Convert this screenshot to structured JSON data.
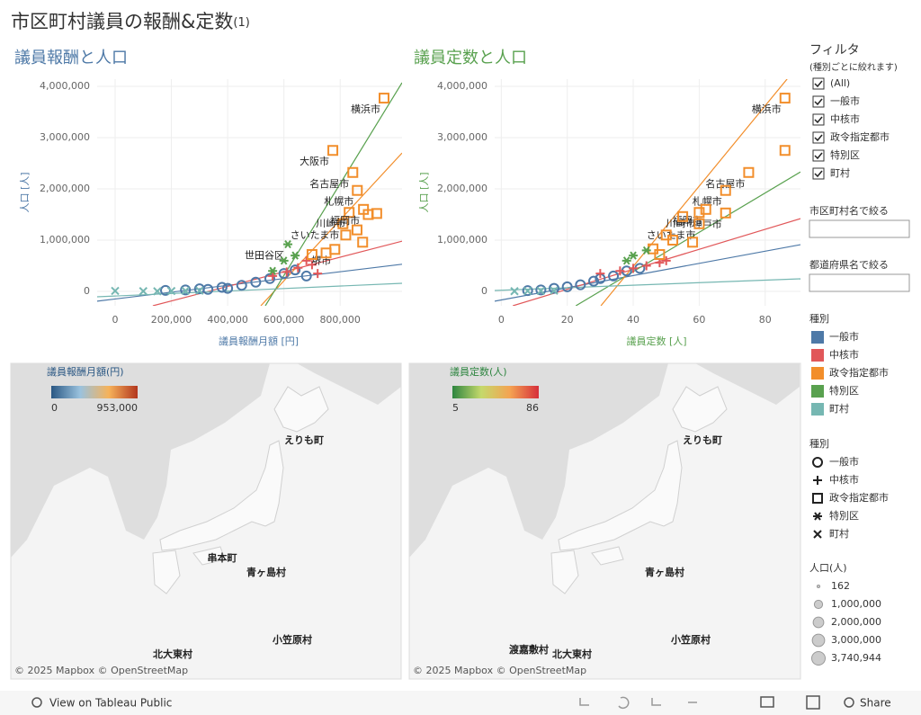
{
  "title": "市区町村議員の報酬&定数",
  "title_suffix": "(1)",
  "chart_data": [
    {
      "type": "scatter",
      "title": "議員報酬と人口",
      "title_color": "#4e79a7",
      "x_label": "議員報酬月額 [円]",
      "y_label": "人口 [人]",
      "xlim": [
        -64000,
        1020000
      ],
      "ylim": [
        -280000,
        4140000
      ],
      "xticks": [
        0,
        {
          "value": 200000,
          "label": "200,000"
        },
        {
          "value": 400000,
          "label": "400,000"
        },
        {
          "value": 600000,
          "label": "600,000"
        },
        {
          "value": 800000,
          "label": "800,000"
        }
      ],
      "yticks": [
        0,
        {
          "value": 1000000,
          "label": "1,000,000"
        },
        {
          "value": 2000000,
          "label": "2,000,000"
        },
        {
          "value": 3000000,
          "label": "3,000,000"
        },
        {
          "value": 4000000,
          "label": "4,000,000"
        }
      ],
      "grid": true,
      "trend_lines": [
        {
          "color": "#4e79a7",
          "x": [
            -64000,
            1020000
          ],
          "y": [
            -190000,
            530000
          ]
        },
        {
          "color": "#e15759",
          "x": [
            134000,
            1020000
          ],
          "y": [
            -280000,
            980000
          ]
        },
        {
          "color": "#f28e2b",
          "x": [
            518000,
            1020000
          ],
          "y": [
            -280000,
            2700000
          ]
        },
        {
          "color": "#59a14f",
          "x": [
            534000,
            1020000
          ],
          "y": [
            -280000,
            4070000
          ]
        },
        {
          "color": "#76b7b2",
          "x": [
            -64000,
            1020000
          ],
          "y": [
            -105000,
            158000
          ]
        }
      ],
      "series": [
        {
          "name": "一般市",
          "color": "#4e79a7",
          "shape": "circle",
          "x": [
            179000,
            250000,
            300000,
            380000,
            450000,
            500000,
            550000,
            600000,
            640000,
            680000,
            400000,
            330000
          ],
          "values": [
            20000,
            30000,
            50000,
            80000,
            120000,
            180000,
            250000,
            350000,
            420000,
            300000,
            60000,
            40000
          ],
          "labels": [
            null,
            null,
            null,
            null,
            null,
            null,
            null,
            null,
            null,
            null,
            null,
            null
          ]
        },
        {
          "name": "中核市",
          "color": "#e15759",
          "shape": "plus",
          "x": [
            560000,
            610000,
            650000,
            700000,
            720000,
            680000
          ],
          "values": [
            300000,
            380000,
            460000,
            520000,
            350000,
            600000
          ],
          "labels": [
            null,
            null,
            null,
            null,
            null,
            null
          ]
        },
        {
          "name": "政令指定都市",
          "color": "#f28e2b",
          "shape": "square",
          "x": [
            956000,
            774000,
            845000,
            861000,
            832000,
            810000,
            883000,
            781000,
            750000,
            700000,
            860000,
            900000,
            820000,
            880000,
            930000
          ],
          "values": [
            3770000,
            2750000,
            2320000,
            1970000,
            1540000,
            1320000,
            1600000,
            820000,
            750000,
            720000,
            1200000,
            1500000,
            1100000,
            960000,
            1520000
          ],
          "labels": [
            "横浜市",
            "大阪市",
            "名古屋市",
            "札幌市",
            "川崎市",
            "さいたま市",
            "福岡市",
            "堺市",
            null,
            null,
            null,
            null,
            null,
            null,
            null
          ]
        },
        {
          "name": "特別区",
          "color": "#59a14f",
          "shape": "star",
          "x": [
            614000,
            600000,
            640000,
            560000
          ],
          "values": [
            920000,
            600000,
            700000,
            400000
          ],
          "labels": [
            "世田谷区",
            null,
            null,
            null
          ]
        },
        {
          "name": "町村",
          "color": "#76b7b2",
          "shape": "x",
          "x": [
            0,
            100000,
            150000,
            200000,
            250000,
            300000
          ],
          "values": [
            10000,
            5000,
            3000,
            8000,
            12000,
            15000
          ],
          "labels": [
            null,
            null,
            null,
            null,
            null,
            null
          ]
        }
      ]
    },
    {
      "type": "scatter",
      "title": "議員定数と人口",
      "title_color": "#59a14f",
      "x_label": "議員定数 [人]",
      "y_label": "人口 [人]",
      "xlim": [
        -2,
        90.7
      ],
      "ylim": [
        -280000,
        4140000
      ],
      "xticks": [
        0,
        20,
        40,
        60,
        80
      ],
      "yticks": [
        0,
        {
          "value": 1000000,
          "label": "1,000,000"
        },
        {
          "value": 2000000,
          "label": "2,000,000"
        },
        {
          "value": 3000000,
          "label": "3,000,000"
        },
        {
          "value": 4000000,
          "label": "4,000,000"
        }
      ],
      "grid": true,
      "trend_lines": [
        {
          "color": "#4e79a7",
          "x": [
            -2,
            90.7
          ],
          "y": [
            -190000,
            912000
          ]
        },
        {
          "color": "#e15759",
          "x": [
            3.5,
            90.7
          ],
          "y": [
            -280000,
            1420000
          ]
        },
        {
          "color": "#59a14f",
          "x": [
            22.6,
            90.7
          ],
          "y": [
            -280000,
            2330000
          ]
        },
        {
          "color": "#f28e2b",
          "x": [
            30.2,
            90.7
          ],
          "y": [
            -280000,
            4460000
          ]
        },
        {
          "color": "#76b7b2",
          "x": [
            -2,
            90.7
          ],
          "y": [
            18000,
            246000
          ]
        }
      ],
      "series": [
        {
          "name": "一般市",
          "color": "#4e79a7",
          "shape": "circle",
          "x": [
            8,
            12,
            16,
            20,
            24,
            28,
            30,
            34,
            38,
            42
          ],
          "values": [
            15000,
            30000,
            60000,
            90000,
            130000,
            200000,
            250000,
            300000,
            400000,
            450000
          ],
          "labels": [
            null,
            null,
            null,
            null,
            null,
            null,
            null,
            null,
            null,
            null
          ]
        },
        {
          "name": "中核市",
          "color": "#e15759",
          "shape": "plus",
          "x": [
            30,
            36,
            40,
            44,
            48,
            50
          ],
          "values": [
            350000,
            400000,
            450000,
            500000,
            560000,
            600000
          ],
          "labels": [
            null,
            null,
            null,
            null,
            null,
            null
          ]
        },
        {
          "name": "政令指定都市",
          "color": "#f28e2b",
          "shape": "square",
          "x": [
            86,
            86,
            75,
            68,
            62,
            60,
            68,
            60,
            55,
            50,
            46,
            48,
            52,
            58
          ],
          "values": [
            3770000,
            2750000,
            2320000,
            1970000,
            1600000,
            1540000,
            1530000,
            1320000,
            1460000,
            1100000,
            830000,
            720000,
            1000000,
            960000
          ],
          "labels": [
            "横浜市",
            null,
            "名古屋市",
            "札幌市",
            "福岡市",
            "川崎市",
            "神戸市",
            "さいたま市",
            null,
            null,
            null,
            null,
            null,
            null
          ]
        },
        {
          "name": "特別区",
          "color": "#59a14f",
          "shape": "star",
          "x": [
            40,
            44,
            38
          ],
          "values": [
            700000,
            800000,
            600000
          ],
          "labels": [
            null,
            null,
            null
          ]
        },
        {
          "name": "町村",
          "color": "#76b7b2",
          "shape": "x",
          "x": [
            4,
            8,
            12,
            16
          ],
          "values": [
            5000,
            8000,
            10000,
            15000
          ],
          "labels": [
            null,
            null,
            null,
            null
          ]
        }
      ]
    }
  ],
  "maps": [
    {
      "legend_title": "議員報酬月額(円)",
      "ramp": [
        "#2a5783",
        "#9ac2de",
        "#f6b25a",
        "#b2361e"
      ],
      "range": [
        0,
        {
          "value": 953000,
          "label": "953,000"
        }
      ],
      "place_labels": [
        "えりも町",
        "串本町",
        "青ヶ島村",
        "北大東村",
        "小笠原村"
      ],
      "attribution": "© 2025 Mapbox © OpenStreetMap"
    },
    {
      "legend_title": "議員定数(人)",
      "ramp": [
        "#2e8540",
        "#c5d96b",
        "#f4a352",
        "#d62f3b"
      ],
      "range": [
        5,
        86
      ],
      "place_labels": [
        "えりも町",
        "青ヶ島村",
        "渡嘉敷村",
        "北大東村",
        "小笠原村"
      ],
      "attribution": "© 2025 Mapbox © OpenStreetMap"
    }
  ],
  "filters": {
    "title": "フィルタ",
    "subtitle": "(種別ごとに絞れます)",
    "options": [
      "(All)",
      "一般市",
      "中核市",
      "政令指定都市",
      "特別区",
      "町村"
    ],
    "search_labels": [
      "市区町村名で絞る",
      "都道府県名で絞る"
    ]
  },
  "legends": {
    "color": {
      "title": "種別",
      "items": [
        {
          "name": "一般市",
          "color": "#4e79a7"
        },
        {
          "name": "中核市",
          "color": "#e15759"
        },
        {
          "name": "政令指定都市",
          "color": "#f28e2b"
        },
        {
          "name": "特別区",
          "color": "#59a14f"
        },
        {
          "name": "町村",
          "color": "#76b7b2"
        }
      ]
    },
    "shape": {
      "title": "種別",
      "items": [
        {
          "name": "一般市",
          "shape": "circle"
        },
        {
          "name": "中核市",
          "shape": "plus"
        },
        {
          "name": "政令指定都市",
          "shape": "square"
        },
        {
          "name": "特別区",
          "shape": "star"
        },
        {
          "name": "町村",
          "shape": "x"
        }
      ]
    },
    "size": {
      "title": "人口(人)",
      "items": [
        162,
        {
          "value": 1000000,
          "label": "1,000,000"
        },
        {
          "value": 2000000,
          "label": "2,000,000"
        },
        {
          "value": 3000000,
          "label": "3,000,000"
        },
        {
          "value": 3740944,
          "label": "3,740,944"
        }
      ]
    }
  },
  "toolbar": {
    "view_link": "View on Tableau Public",
    "share": "Share"
  }
}
